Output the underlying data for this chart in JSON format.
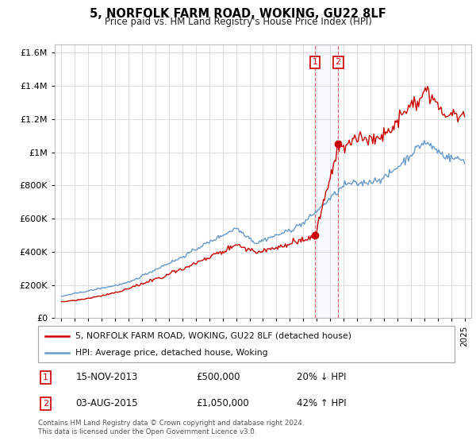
{
  "title": "5, NORFOLK FARM ROAD, WOKING, GU22 8LF",
  "subtitle": "Price paid vs. HM Land Registry's House Price Index (HPI)",
  "legend_line1": "5, NORFOLK FARM ROAD, WOKING, GU22 8LF (detached house)",
  "legend_line2": "HPI: Average price, detached house, Woking",
  "annotation1_date": "15-NOV-2013",
  "annotation1_price": "£500,000",
  "annotation1_hpi": "20% ↓ HPI",
  "annotation2_date": "03-AUG-2015",
  "annotation2_price": "£1,050,000",
  "annotation2_hpi": "42% ↑ HPI",
  "footer": "Contains HM Land Registry data © Crown copyright and database right 2024.\nThis data is licensed under the Open Government Licence v3.0.",
  "red_color": "#cc0000",
  "blue_color": "#6699cc",
  "sale1_x": 2013.88,
  "sale1_y": 500000,
  "sale2_x": 2015.59,
  "sale2_y": 1050000,
  "ylim": [
    0,
    1650000
  ],
  "xlim": [
    1994.5,
    2025.5
  ],
  "yticks": [
    0,
    200000,
    400000,
    600000,
    800000,
    1000000,
    1200000,
    1400000,
    1600000
  ]
}
